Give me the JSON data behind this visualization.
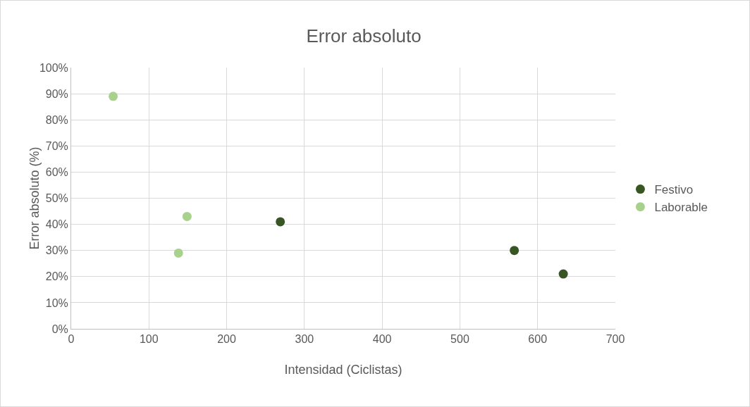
{
  "chart_data": {
    "type": "scatter",
    "title": "Error absoluto",
    "xlabel": "Intensidad (Ciclistas)",
    "ylabel": "Error absoluto (%)",
    "series": [
      {
        "name": "Festivo",
        "color": "#375623",
        "x": [
          269,
          570,
          633
        ],
        "values": [
          41,
          30,
          21
        ]
      },
      {
        "name": "Laborable",
        "color": "#a9d18e",
        "x": [
          54,
          149,
          138
        ],
        "values": [
          89,
          43,
          29
        ]
      }
    ],
    "xlim": [
      0,
      700
    ],
    "xticks": [
      0,
      100,
      200,
      300,
      400,
      500,
      600,
      700
    ],
    "ylim": [
      0,
      100
    ],
    "yticks": [
      {
        "value": 0,
        "label": "0%"
      },
      {
        "value": 10,
        "label": "10%"
      },
      {
        "value": 20,
        "label": "20%"
      },
      {
        "value": 30,
        "label": "30%"
      },
      {
        "value": 40,
        "label": "40%"
      },
      {
        "value": 50,
        "label": "50%"
      },
      {
        "value": 60,
        "label": "60%"
      },
      {
        "value": 70,
        "label": "70%"
      },
      {
        "value": 80,
        "label": "80%"
      },
      {
        "value": 90,
        "label": "90%"
      },
      {
        "value": 100,
        "label": "100%"
      }
    ],
    "grid": true,
    "legend": "right",
    "marker": "circle"
  }
}
